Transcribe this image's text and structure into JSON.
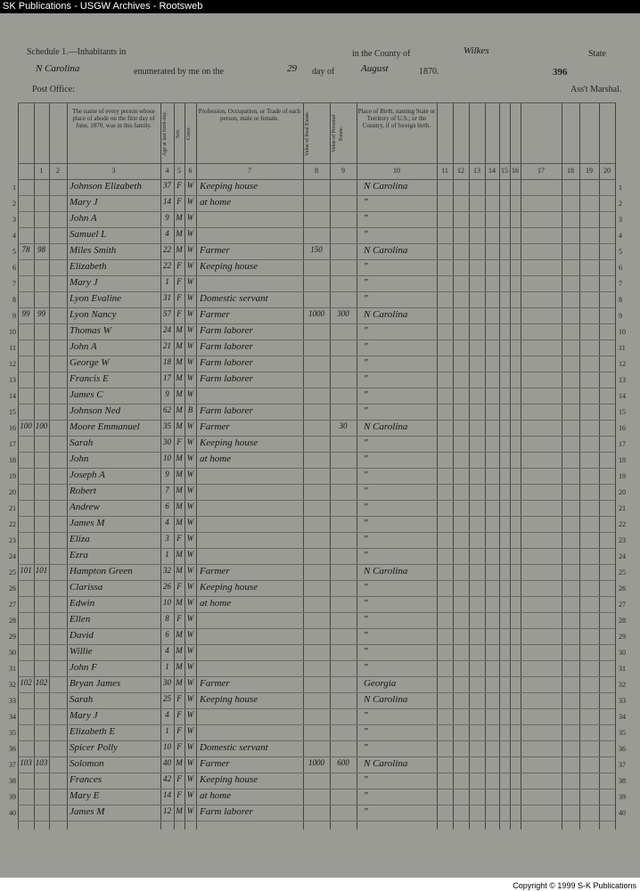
{
  "window": {
    "title": "SK Publications - USGW Archives - Rootsweb"
  },
  "header": {
    "schedule": "Schedule 1.—Inhabitants in",
    "county_label": "in the County of",
    "state_label": "State",
    "enumerated": "enumerated by me on the",
    "day_of": "day of",
    "year": "1870.",
    "post_office": "Post Office:",
    "marshal": "Ass't Marshal.",
    "page_number": "396",
    "day": "29",
    "month": "August",
    "county": "Wilkes",
    "state": "N Carolina"
  },
  "column_headers": {
    "name": "The name of every person whose place of abode on the first day of June, 1870, was in this family.",
    "age": "Age at last birth-day.",
    "sex": "Sex.",
    "color": "Color.",
    "occupation": "Profession, Occupation, or Trade of each person, male or female.",
    "real_estate": "Value of Real Estate.",
    "personal_estate": "Value of Personal Estate.",
    "birthplace": "Place of Birth, naming State or Territory of U.S.; or the Country, if of foreign birth."
  },
  "column_numbers": [
    1,
    2,
    3,
    4,
    5,
    6,
    7,
    8,
    9,
    10,
    11,
    12,
    13,
    14,
    15,
    16,
    17,
    18,
    19,
    20
  ],
  "row_numbers": [
    1,
    2,
    3,
    4,
    5,
    6,
    7,
    8,
    9,
    10,
    11,
    12,
    13,
    14,
    15,
    16,
    17,
    18,
    19,
    20,
    21,
    22,
    23,
    24,
    25,
    26,
    27,
    28,
    29,
    30,
    31,
    32,
    33,
    34,
    35,
    36,
    37,
    38,
    39,
    40
  ],
  "rows": [
    {
      "name": "Johnson Elizabeth",
      "age": "37",
      "sex": "F",
      "color": "W",
      "occupation": "Keeping house",
      "birthplace": "N Carolina"
    },
    {
      "name": "Mary J",
      "age": "14",
      "sex": "F",
      "color": "W",
      "occupation": "at home",
      "birthplace": "\""
    },
    {
      "name": "John A",
      "age": "9",
      "sex": "M",
      "color": "W",
      "birthplace": "\""
    },
    {
      "name": "Samuel L",
      "age": "4",
      "sex": "M",
      "color": "W",
      "birthplace": "\""
    },
    {
      "dwelling": "78",
      "family": "98",
      "name": "Miles Smith",
      "age": "22",
      "sex": "M",
      "color": "W",
      "occupation": "Farmer",
      "real": "150",
      "birthplace": "N Carolina"
    },
    {
      "name": "Elizabeth",
      "age": "22",
      "sex": "F",
      "color": "W",
      "occupation": "Keeping house",
      "birthplace": "\""
    },
    {
      "name": "Mary J",
      "age": "1",
      "sex": "F",
      "color": "W",
      "birthplace": "\""
    },
    {
      "name": "Lyon Evaline",
      "age": "31",
      "sex": "F",
      "color": "W",
      "occupation": "Domestic servant",
      "birthplace": "\""
    },
    {
      "dwelling": "99",
      "family": "99",
      "name": "Lyon Nancy",
      "age": "57",
      "sex": "F",
      "color": "W",
      "occupation": "Farmer",
      "real": "1000",
      "personal": "300",
      "birthplace": "N Carolina"
    },
    {
      "name": "Thomas W",
      "age": "24",
      "sex": "M",
      "color": "W",
      "occupation": "Farm laborer",
      "birthplace": "\""
    },
    {
      "name": "John A",
      "age": "21",
      "sex": "M",
      "color": "W",
      "occupation": "Farm laborer",
      "birthplace": "\""
    },
    {
      "name": "George W",
      "age": "18",
      "sex": "M",
      "color": "W",
      "occupation": "Farm laborer",
      "birthplace": "\""
    },
    {
      "name": "Francis E",
      "age": "17",
      "sex": "M",
      "color": "W",
      "occupation": "Farm laborer",
      "birthplace": "\""
    },
    {
      "name": "James C",
      "age": "9",
      "sex": "M",
      "color": "W",
      "birthplace": "\""
    },
    {
      "name": "Johnson Ned",
      "age": "62",
      "sex": "M",
      "color": "B",
      "occupation": "Farm laborer",
      "birthplace": "\""
    },
    {
      "dwelling": "100",
      "family": "100",
      "name": "Moore Emmanuel",
      "age": "35",
      "sex": "M",
      "color": "W",
      "occupation": "Farmer",
      "personal": "30",
      "birthplace": "N Carolina"
    },
    {
      "name": "Sarah",
      "age": "30",
      "sex": "F",
      "color": "W",
      "occupation": "Keeping house",
      "birthplace": "\""
    },
    {
      "name": "John",
      "age": "10",
      "sex": "M",
      "color": "W",
      "occupation": "at home",
      "birthplace": "\""
    },
    {
      "name": "Joseph A",
      "age": "9",
      "sex": "M",
      "color": "W",
      "birthplace": "\""
    },
    {
      "name": "Robert",
      "age": "7",
      "sex": "M",
      "color": "W",
      "birthplace": "\""
    },
    {
      "name": "Andrew",
      "age": "6",
      "sex": "M",
      "color": "W",
      "birthplace": "\""
    },
    {
      "name": "James M",
      "age": "4",
      "sex": "M",
      "color": "W",
      "birthplace": "\""
    },
    {
      "name": "Eliza",
      "age": "3",
      "sex": "F",
      "color": "W",
      "birthplace": "\""
    },
    {
      "name": "Ezra",
      "age": "1",
      "sex": "M",
      "color": "W",
      "birthplace": "\""
    },
    {
      "dwelling": "101",
      "family": "101",
      "name": "Hampton Green",
      "age": "32",
      "sex": "M",
      "color": "W",
      "occupation": "Farmer",
      "birthplace": "N Carolina"
    },
    {
      "name": "Clarissa",
      "age": "26",
      "sex": "F",
      "color": "W",
      "occupation": "Keeping house",
      "birthplace": "\""
    },
    {
      "name": "Edwin",
      "age": "10",
      "sex": "M",
      "color": "W",
      "occupation": "at home",
      "birthplace": "\""
    },
    {
      "name": "Ellen",
      "age": "8",
      "sex": "F",
      "color": "W",
      "birthplace": "\""
    },
    {
      "name": "David",
      "age": "6",
      "sex": "M",
      "color": "W",
      "birthplace": "\""
    },
    {
      "name": "Willie",
      "age": "4",
      "sex": "M",
      "color": "W",
      "birthplace": "\""
    },
    {
      "name": "John F",
      "age": "1",
      "sex": "M",
      "color": "W",
      "birthplace": "\""
    },
    {
      "dwelling": "102",
      "family": "102",
      "name": "Bryan James",
      "age": "30",
      "sex": "M",
      "color": "W",
      "occupation": "Farmer",
      "birthplace": "Georgia"
    },
    {
      "name": "Sarah",
      "age": "25",
      "sex": "F",
      "color": "W",
      "occupation": "Keeping house",
      "birthplace": "N Carolina"
    },
    {
      "name": "Mary J",
      "age": "4",
      "sex": "F",
      "color": "W",
      "birthplace": "\""
    },
    {
      "name": "Elizabeth E",
      "age": "1",
      "sex": "F",
      "color": "W",
      "birthplace": "\""
    },
    {
      "name": "Spicer Polly",
      "age": "10",
      "sex": "F",
      "color": "W",
      "occupation": "Domestic servant",
      "birthplace": "\""
    },
    {
      "dwelling": "103",
      "family": "103",
      "name": "Solomon",
      "age": "40",
      "sex": "M",
      "color": "W",
      "occupation": "Farmer",
      "real": "1000",
      "personal": "600",
      "birthplace": "N Carolina"
    },
    {
      "name": "Frances",
      "age": "42",
      "sex": "F",
      "color": "W",
      "occupation": "Keeping house",
      "birthplace": "\""
    },
    {
      "name": "Mary E",
      "age": "14",
      "sex": "F",
      "color": "W",
      "occupation": "at home",
      "birthplace": "\""
    },
    {
      "name": "James M",
      "age": "12",
      "sex": "M",
      "color": "W",
      "occupation": "Farm laborer",
      "birthplace": "\""
    }
  ],
  "footer": {
    "copyright": "Copyright © 1999 S-K Publications"
  }
}
